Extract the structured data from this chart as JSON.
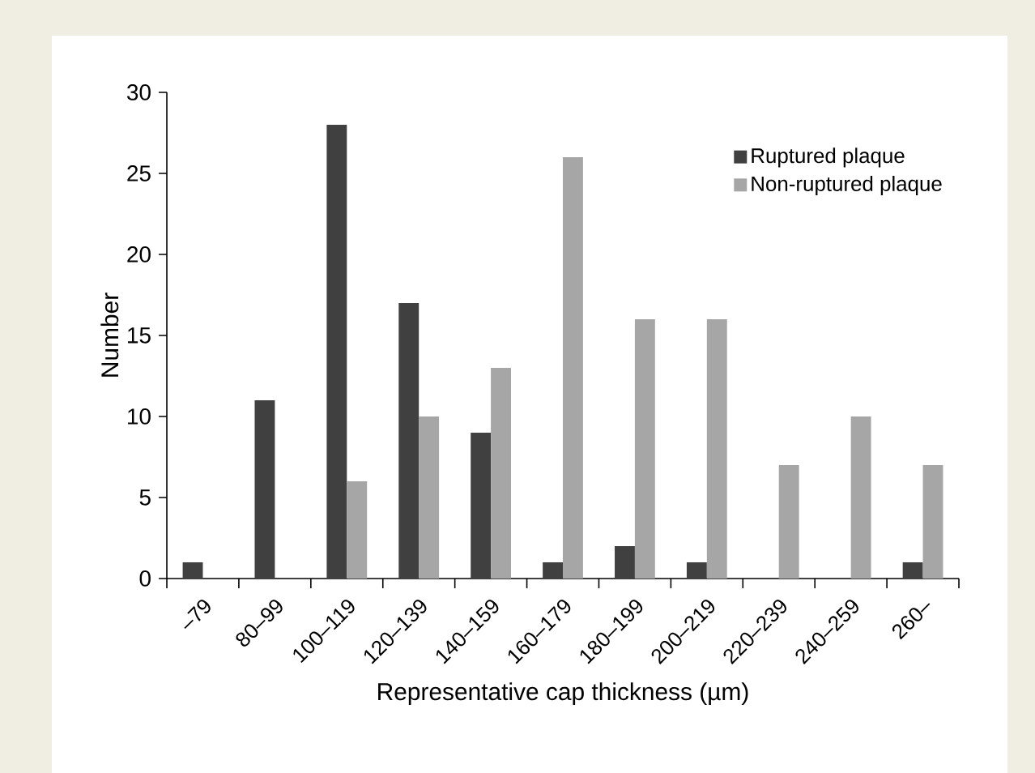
{
  "chart_data": {
    "type": "bar",
    "categories": [
      "–79",
      "80–99",
      "100–119",
      "120–139",
      "140–159",
      "160–179",
      "180–199",
      "200–219",
      "220–239",
      "240–259",
      "260–"
    ],
    "series": [
      {
        "name": "Ruptured plaque",
        "color": "#404040",
        "values": [
          1,
          11,
          28,
          17,
          9,
          1,
          2,
          1,
          0,
          0,
          1
        ]
      },
      {
        "name": "Non-ruptured plaque",
        "color": "#a6a6a6",
        "values": [
          0,
          0,
          6,
          10,
          13,
          26,
          16,
          16,
          7,
          10,
          7
        ]
      }
    ],
    "xlabel": "Representative cap thickness (µm)",
    "ylabel": "Number",
    "ylim": [
      0,
      30
    ],
    "yticks": [
      0,
      5,
      10,
      15,
      20,
      25,
      30
    ],
    "legend": "top right",
    "grid": false
  }
}
